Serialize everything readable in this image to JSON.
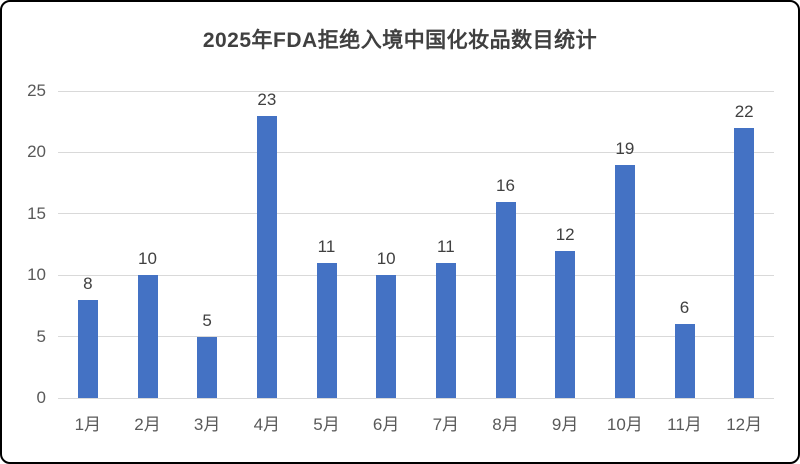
{
  "chart_data": {
    "type": "bar",
    "title": "2025年FDA拒绝入境中国化妆品数目统计",
    "categories": [
      "1月",
      "2月",
      "3月",
      "4月",
      "5月",
      "6月",
      "7月",
      "8月",
      "9月",
      "10月",
      "11月",
      "12月"
    ],
    "values": [
      8,
      10,
      5,
      23,
      11,
      10,
      11,
      16,
      12,
      19,
      6,
      22
    ],
    "xlabel": "",
    "ylabel": "",
    "ylim": [
      0,
      25
    ],
    "ytick_interval": 5,
    "ytick_labels": [
      "0",
      "5",
      "10",
      "15",
      "20",
      "25"
    ],
    "grid": true,
    "legend": false,
    "colors": {
      "bar": "#4472C4",
      "gridline": "#D9D9D9",
      "title": "#404040",
      "axis_labels": "#595959",
      "value_labels": "#404040",
      "background": "#FFFFFF",
      "frame_border": "#000000"
    }
  }
}
